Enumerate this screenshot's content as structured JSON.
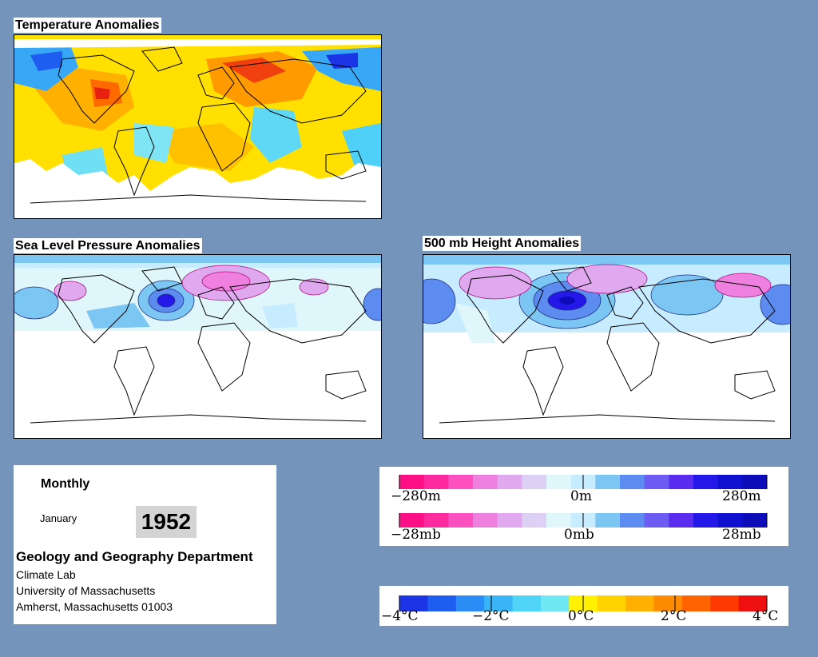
{
  "maps": {
    "temperature": {
      "title": "Temperature Anomalies"
    },
    "slp": {
      "title": "Sea Level Pressure Anomalies"
    },
    "height500": {
      "title": "500 mb Height Anomalies"
    }
  },
  "info": {
    "period": "Monthly",
    "month": "January",
    "year": "1952",
    "department": "Geology and Geography Department",
    "lab": "Climate Lab",
    "university": "University of Massachusetts",
    "address": "Amherst, Massachusetts 01003"
  },
  "legends": {
    "height": {
      "min": "−280m",
      "mid": "0m",
      "max": "280m"
    },
    "pressure": {
      "min": "−28mb",
      "mid": "0mb",
      "max": "28mb"
    },
    "temperature": {
      "labels": [
        "−4°C",
        "−2°C",
        "0°C",
        "2°C",
        "4°C"
      ]
    }
  },
  "colors": {
    "background": "#7594bb",
    "temp_scale": [
      "#1a34e6",
      "#1f5cf0",
      "#2a8cf5",
      "#38b4f7",
      "#4fd4f8",
      "#6fe8f4",
      "#fff100",
      "#ffd200",
      "#ffb000",
      "#ff8c00",
      "#ff6400",
      "#ff3a00",
      "#ee1010"
    ],
    "anom_scale": [
      "#ff0f86",
      "#ff2aa0",
      "#ff50c0",
      "#f080e0",
      "#e0a8ee",
      "#dcd0f4",
      "#dff7fb",
      "#c8ecff",
      "#7cc6f4",
      "#5c8cf0",
      "#6c5cf4",
      "#5a2cf0",
      "#2418e8",
      "#1010d0",
      "#0c0cb8"
    ]
  }
}
